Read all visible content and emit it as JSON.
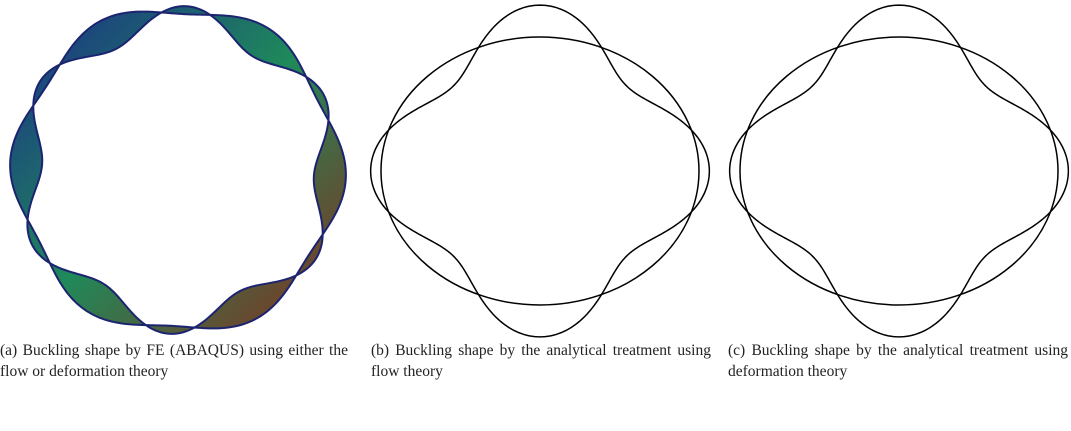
{
  "panels": [
    {
      "caption": "(a) Buckling shape by FE (ABAQUS) using either the flow or deformation theory"
    },
    {
      "caption": "(b) Buckling shape by the analytical treatment using flow theory"
    },
    {
      "caption": "(c) Buckling shape by the analytical treatment using deformation theory"
    }
  ]
}
